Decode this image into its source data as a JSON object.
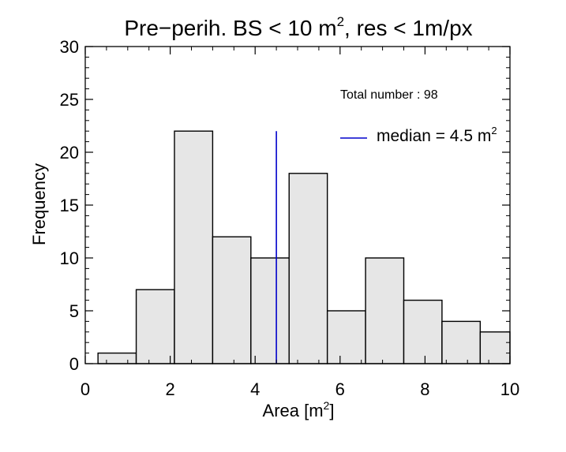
{
  "chart_data": {
    "type": "bar",
    "title": {
      "prefix": "Pre−perih. BS < 10 m",
      "sup": "2",
      "suffix": ", res < 1m/px"
    },
    "xlabel": {
      "prefix": "Area [m",
      "sup": "2",
      "suffix": "]"
    },
    "ylabel": "Frequency",
    "xlim": [
      0,
      10
    ],
    "ylim": [
      0,
      30
    ],
    "xticks": [
      0,
      2,
      4,
      6,
      8,
      10
    ],
    "yticks": [
      0,
      5,
      10,
      15,
      20,
      25,
      30
    ],
    "bins": [
      {
        "start": 0.3,
        "end": 1.2,
        "value": 1
      },
      {
        "start": 1.2,
        "end": 2.1,
        "value": 7
      },
      {
        "start": 2.1,
        "end": 3.0,
        "value": 22
      },
      {
        "start": 3.0,
        "end": 3.9,
        "value": 12
      },
      {
        "start": 3.9,
        "end": 4.8,
        "value": 10
      },
      {
        "start": 4.8,
        "end": 5.7,
        "value": 18
      },
      {
        "start": 5.7,
        "end": 6.6,
        "value": 5
      },
      {
        "start": 6.6,
        "end": 7.5,
        "value": 10
      },
      {
        "start": 7.5,
        "end": 8.4,
        "value": 6
      },
      {
        "start": 8.4,
        "end": 9.3,
        "value": 4
      },
      {
        "start": 9.3,
        "end": 10.0,
        "value": 3
      }
    ],
    "median": {
      "value": 4.5,
      "line_top": 22,
      "label_prefix": "median = 4.5 m",
      "label_sup": "2"
    },
    "total_label": "Total number : 98",
    "colors": {
      "bar_fill": "#e6e6e6",
      "bar_stroke": "#000000",
      "median_line": "#0000cc"
    }
  }
}
